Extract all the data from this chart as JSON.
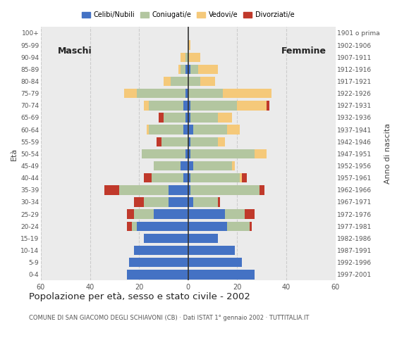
{
  "age_groups": [
    "0-4",
    "5-9",
    "10-14",
    "15-19",
    "20-24",
    "25-29",
    "30-34",
    "35-39",
    "40-44",
    "45-49",
    "50-54",
    "55-59",
    "60-64",
    "65-69",
    "70-74",
    "75-79",
    "80-84",
    "85-89",
    "90-94",
    "95-99",
    "100+"
  ],
  "birth_years": [
    "1997-2001",
    "1992-1996",
    "1987-1991",
    "1982-1986",
    "1977-1981",
    "1972-1976",
    "1967-1971",
    "1962-1966",
    "1957-1961",
    "1952-1956",
    "1947-1951",
    "1942-1946",
    "1937-1941",
    "1932-1936",
    "1927-1931",
    "1922-1926",
    "1917-1921",
    "1912-1916",
    "1907-1911",
    "1902-1906",
    "1901 o prima"
  ],
  "males": {
    "celibi": [
      25,
      24,
      22,
      18,
      21,
      14,
      8,
      8,
      2,
      3,
      1,
      0,
      2,
      1,
      2,
      1,
      0,
      1,
      0,
      0,
      0
    ],
    "coniugati": [
      0,
      0,
      0,
      0,
      2,
      8,
      10,
      20,
      13,
      11,
      18,
      11,
      14,
      9,
      14,
      20,
      7,
      2,
      1,
      0,
      0
    ],
    "vedovi": [
      0,
      0,
      0,
      0,
      0,
      0,
      0,
      0,
      0,
      0,
      0,
      0,
      1,
      0,
      2,
      5,
      3,
      1,
      2,
      0,
      0
    ],
    "divorziati": [
      0,
      0,
      0,
      0,
      2,
      3,
      4,
      6,
      3,
      0,
      0,
      2,
      0,
      2,
      0,
      0,
      0,
      0,
      0,
      0,
      0
    ]
  },
  "females": {
    "nubili": [
      27,
      22,
      19,
      12,
      16,
      15,
      2,
      1,
      1,
      2,
      1,
      1,
      2,
      1,
      1,
      0,
      0,
      1,
      0,
      0,
      0
    ],
    "coniugate": [
      0,
      0,
      0,
      0,
      9,
      8,
      10,
      28,
      20,
      16,
      26,
      11,
      14,
      11,
      19,
      14,
      5,
      3,
      0,
      0,
      0
    ],
    "vedove": [
      0,
      0,
      0,
      0,
      0,
      0,
      0,
      0,
      1,
      1,
      5,
      3,
      5,
      6,
      12,
      20,
      6,
      8,
      5,
      1,
      0
    ],
    "divorziate": [
      0,
      0,
      0,
      0,
      1,
      4,
      1,
      2,
      2,
      0,
      0,
      0,
      0,
      0,
      1,
      0,
      0,
      0,
      0,
      0,
      0
    ]
  },
  "colors": {
    "celibi": "#4472c4",
    "coniugati": "#b3c6a0",
    "vedovi": "#f5c97a",
    "divorziati": "#c0392b"
  },
  "xlim": 60,
  "title": "Popolazione per età, sesso e stato civile - 2002",
  "subtitle": "COMUNE DI SAN GIACOMO DEGLI SCHIAVONI (CB) · Dati ISTAT 1° gennaio 2002 · TUTTITALIA.IT",
  "label_maschi": "Maschi",
  "label_femmine": "Femmine",
  "ylabel_left": "Età",
  "ylabel_right": "Anno di nascita",
  "bg_color": "#ffffff",
  "plot_bg": "#ebebeb"
}
